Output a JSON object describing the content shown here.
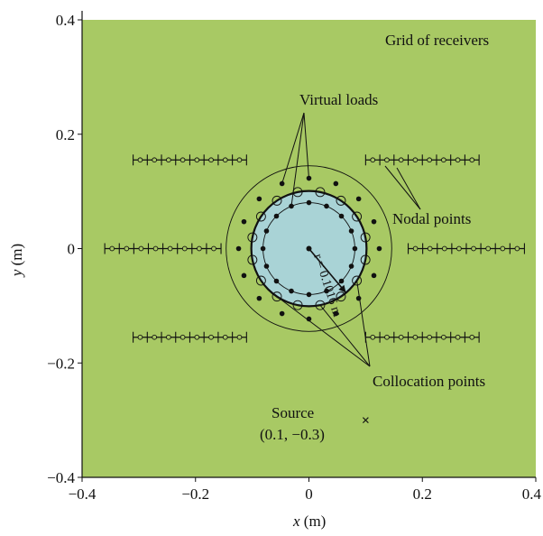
{
  "colors": {
    "domain_fill": "#a8c964",
    "cylinder_fill": "#a9d3d6",
    "line": "#111111"
  },
  "chart_data": {
    "type": "scatter",
    "xlabel": "x (m)",
    "ylabel": "y (m)",
    "xlim": [
      -0.4,
      0.4
    ],
    "ylim": [
      -0.4,
      0.4
    ],
    "x_ticks": [
      -0.4,
      -0.2,
      0,
      0.2,
      0.4
    ],
    "y_ticks": [
      -0.4,
      -0.2,
      0,
      0.2,
      0.4
    ],
    "x_tick_labels": [
      "−0.4",
      "−0.2",
      "0",
      "0.2",
      "0.4"
    ],
    "y_tick_labels": [
      "−0.4",
      "−0.2",
      "0",
      "0.2",
      "0.4"
    ],
    "cylinder": {
      "center": [
        0,
        0
      ],
      "radius": 0.1016,
      "radius_label": "r = 0.1016 m"
    },
    "virtual_load_radius": 0.124,
    "collocation_radius": 0.081,
    "outer_ring_radius": 0.146,
    "virtual_loads_count": 16,
    "collocation_points_count": 16,
    "receiver_lines": [
      {
        "x_start": -0.31,
        "x_end": -0.11,
        "y": 0.155
      },
      {
        "x_start": 0.1,
        "x_end": 0.3,
        "y": 0.155
      },
      {
        "x_start": -0.36,
        "x_end": -0.155,
        "y": 0.0
      },
      {
        "x_start": 0.175,
        "x_end": 0.38,
        "y": 0.0
      },
      {
        "x_start": -0.31,
        "x_end": -0.11,
        "y": -0.155
      },
      {
        "x_start": 0.1,
        "x_end": 0.3,
        "y": -0.155
      }
    ],
    "receiver_segments_per_line": 8,
    "source": {
      "x": 0.1,
      "y": -0.3,
      "label": "Source",
      "coords_label": "(0.1, −0.3)"
    },
    "annotations": {
      "grid_of_receivers": "Grid of receivers",
      "virtual_loads": "Virtual loads",
      "nodal_points": "Nodal points",
      "collocation_points": "Collocation points"
    }
  }
}
